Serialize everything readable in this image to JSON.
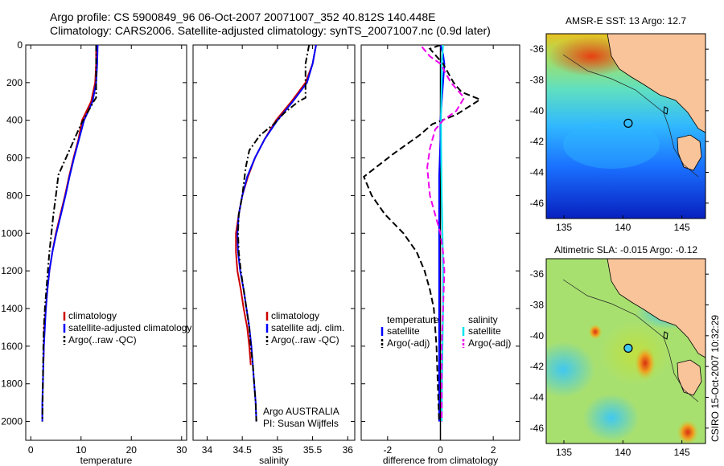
{
  "header": {
    "line1": "Argo profile: CS 5900849_96 06-Oct-2007 20071007_352 40.812S 140.448E",
    "line2": "Climatology: CARS2006. Satellite-adjusted climatology: synTS_20071007.nc (0.9d later)"
  },
  "side_label": "CSIRO 15-Oct-2007 10:32:29",
  "colors": {
    "climatology": "#cc0000",
    "satellite": "#0000ff",
    "argo": "#000000",
    "sal_satellite": "#00e5ee",
    "sal_argo": "#ee00ee",
    "land": "#f9c49a"
  },
  "chart_data": [
    {
      "type": "line",
      "id": "temperature",
      "xlabel": "temperature",
      "ylabel": "",
      "xlim": [
        -1,
        31
      ],
      "ylim": [
        2100,
        0
      ],
      "xticks": [
        0,
        10,
        20,
        30
      ],
      "yticks": [
        0,
        200,
        400,
        600,
        800,
        1000,
        1200,
        1400,
        1600,
        1800,
        2000
      ],
      "series": [
        {
          "name": "climatology",
          "color": "#cc0000",
          "dash": "solid",
          "points": [
            [
              13,
              0
            ],
            [
              13,
              100
            ],
            [
              12.8,
              200
            ],
            [
              12,
              300
            ],
            [
              10.2,
              400
            ],
            [
              9.5,
              500
            ],
            [
              8.5,
              600
            ],
            [
              7.6,
              700
            ],
            [
              6.8,
              800
            ],
            [
              5.9,
              900
            ],
            [
              5,
              1000
            ],
            [
              4.3,
              1100
            ],
            [
              3.7,
              1200
            ],
            [
              3.3,
              1300
            ],
            [
              3,
              1400
            ],
            [
              2.7,
              1500
            ],
            [
              2.6,
              1600
            ],
            [
              2.5,
              1700
            ]
          ]
        },
        {
          "name": "satellite-adjusted climatology",
          "color": "#0000ff",
          "dash": "solid",
          "points": [
            [
              13.3,
              0
            ],
            [
              13.2,
              100
            ],
            [
              13,
              200
            ],
            [
              12.3,
              300
            ],
            [
              10.6,
              400
            ],
            [
              9.6,
              500
            ],
            [
              8.6,
              600
            ],
            [
              7.7,
              700
            ],
            [
              6.9,
              800
            ],
            [
              6,
              900
            ],
            [
              5.1,
              1000
            ],
            [
              4.3,
              1100
            ],
            [
              3.7,
              1200
            ],
            [
              3.3,
              1300
            ],
            [
              3,
              1400
            ],
            [
              2.8,
              1500
            ],
            [
              2.6,
              1600
            ],
            [
              2.5,
              1700
            ],
            [
              2.4,
              1800
            ],
            [
              2.3,
              1900
            ],
            [
              2.3,
              2000
            ]
          ]
        },
        {
          "name": "Argo(..raw -QC)",
          "color": "#000000",
          "dash": "dashdot",
          "points": [
            [
              13,
              0
            ],
            [
              13,
              100
            ],
            [
              13,
              200
            ],
            [
              13,
              280
            ],
            [
              12.5,
              300
            ],
            [
              10,
              420
            ],
            [
              8,
              540
            ],
            [
              5.5,
              690
            ],
            [
              5,
              800
            ],
            [
              4.5,
              900
            ],
            [
              4.1,
              1000
            ],
            [
              3.7,
              1100
            ],
            [
              3.4,
              1200
            ],
            [
              3.1,
              1300
            ],
            [
              2.8,
              1400
            ],
            [
              2.6,
              1500
            ],
            [
              2.5,
              1600
            ],
            [
              2.4,
              1800
            ],
            [
              2.3,
              2000
            ]
          ]
        }
      ],
      "legend": [
        "climatology",
        "satellite-adjusted climatology",
        "Argo(..raw -QC)"
      ],
      "legend_position": "lower-right"
    },
    {
      "type": "line",
      "id": "salinity",
      "xlabel": "salinity",
      "ylabel": "",
      "xlim": [
        33.8,
        36.1
      ],
      "ylim": [
        2100,
        0
      ],
      "xticks": [
        34,
        34.5,
        35,
        35.5,
        36
      ],
      "series": [
        {
          "name": "climatology",
          "color": "#cc0000",
          "dash": "solid",
          "points": [
            [
              35.55,
              0
            ],
            [
              35.5,
              100
            ],
            [
              35.4,
              200
            ],
            [
              35.2,
              300
            ],
            [
              34.98,
              400
            ],
            [
              34.82,
              500
            ],
            [
              34.68,
              600
            ],
            [
              34.58,
              700
            ],
            [
              34.5,
              800
            ],
            [
              34.45,
              900
            ],
            [
              34.41,
              1000
            ],
            [
              34.41,
              1100
            ],
            [
              34.43,
              1200
            ],
            [
              34.48,
              1300
            ],
            [
              34.52,
              1400
            ],
            [
              34.57,
              1500
            ],
            [
              34.6,
              1600
            ],
            [
              34.62,
              1700
            ]
          ]
        },
        {
          "name": "satellite adj. clim.",
          "color": "#0000ff",
          "dash": "solid",
          "points": [
            [
              35.55,
              0
            ],
            [
              35.5,
              100
            ],
            [
              35.42,
              200
            ],
            [
              35.22,
              300
            ],
            [
              35,
              400
            ],
            [
              34.82,
              500
            ],
            [
              34.68,
              600
            ],
            [
              34.57,
              700
            ],
            [
              34.5,
              800
            ],
            [
              34.45,
              900
            ],
            [
              34.43,
              1000
            ],
            [
              34.44,
              1100
            ],
            [
              34.47,
              1200
            ],
            [
              34.52,
              1300
            ],
            [
              34.56,
              1400
            ],
            [
              34.6,
              1500
            ],
            [
              34.63,
              1600
            ],
            [
              34.65,
              1700
            ],
            [
              34.67,
              1800
            ],
            [
              34.69,
              1900
            ],
            [
              34.7,
              2000
            ]
          ]
        },
        {
          "name": "Argo(..raw -QC)",
          "color": "#000000",
          "dash": "dashdot",
          "points": [
            [
              35.45,
              0
            ],
            [
              35.4,
              100
            ],
            [
              35.4,
              200
            ],
            [
              35.4,
              280
            ],
            [
              35.3,
              300
            ],
            [
              35.1,
              360
            ],
            [
              34.95,
              420
            ],
            [
              34.75,
              480
            ],
            [
              34.6,
              560
            ],
            [
              34.55,
              650
            ],
            [
              34.5,
              800
            ],
            [
              34.45,
              900
            ],
            [
              34.44,
              1000
            ],
            [
              34.45,
              1100
            ],
            [
              34.48,
              1200
            ],
            [
              34.52,
              1300
            ],
            [
              34.56,
              1400
            ],
            [
              34.6,
              1500
            ],
            [
              34.62,
              1600
            ],
            [
              34.65,
              1700
            ],
            [
              34.67,
              1800
            ],
            [
              34.69,
              1900
            ],
            [
              34.7,
              2000
            ]
          ]
        }
      ],
      "legend": [
        "climatology",
        "satellite adj. clim.",
        "Argo(..raw -QC)"
      ],
      "legend_position": "lower-right",
      "annotations": [
        "Argo AUSTRALIA",
        "PI: Susan Wijffels"
      ]
    },
    {
      "type": "line",
      "id": "difference",
      "xlabel": "difference from climatology",
      "ylabel": "",
      "xlim": [
        -3,
        3
      ],
      "ylim": [
        2100,
        0
      ],
      "xticks": [
        -2,
        0,
        2
      ],
      "series": [
        {
          "name": "temperature satellite",
          "color": "#0000ff",
          "dash": "solid",
          "points": [
            [
              0,
              0
            ],
            [
              0.1,
              50
            ],
            [
              0.15,
              100
            ],
            [
              0.1,
              200
            ],
            [
              0.05,
              300
            ],
            [
              0,
              400
            ],
            [
              0,
              500
            ],
            [
              -0.05,
              700
            ],
            [
              -0.05,
              900
            ],
            [
              -0.05,
              1100
            ],
            [
              -0.05,
              1300
            ],
            [
              -0.05,
              1500
            ],
            [
              -0.05,
              2000
            ]
          ]
        },
        {
          "name": "temperature Argo(-adj)",
          "color": "#000000",
          "dash": "dashed",
          "points": [
            [
              0,
              0
            ],
            [
              -0.4,
              20
            ],
            [
              0.1,
              100
            ],
            [
              0.5,
              200
            ],
            [
              0.8,
              250
            ],
            [
              1.5,
              290
            ],
            [
              0.6,
              370
            ],
            [
              -0.3,
              420
            ],
            [
              -0.8,
              480
            ],
            [
              -1.8,
              580
            ],
            [
              -2.9,
              700
            ],
            [
              -2.6,
              800
            ],
            [
              -2.1,
              900
            ],
            [
              -1.4,
              1000
            ],
            [
              -0.9,
              1100
            ],
            [
              -0.6,
              1200
            ],
            [
              -0.4,
              1300
            ],
            [
              -0.25,
              1400
            ],
            [
              -0.2,
              1500
            ],
            [
              -0.15,
              1600
            ],
            [
              -0.1,
              1800
            ],
            [
              -0.05,
              2000
            ]
          ]
        },
        {
          "name": "salinity satellite",
          "color": "#00e5ee",
          "dash": "solid",
          "points": [
            [
              0.1,
              0
            ],
            [
              0.05,
              100
            ],
            [
              0.05,
              200
            ],
            [
              0.03,
              300
            ],
            [
              0.02,
              400
            ],
            [
              0.03,
              600
            ],
            [
              0.05,
              800
            ],
            [
              0.08,
              1000
            ],
            [
              0.1,
              1200
            ],
            [
              0.1,
              1400
            ],
            [
              0.08,
              1600
            ],
            [
              0.06,
              1800
            ],
            [
              0.05,
              2000
            ]
          ]
        },
        {
          "name": "salinity Argo(-adj)",
          "color": "#ee00ee",
          "dash": "dashed",
          "points": [
            [
              -0.7,
              10
            ],
            [
              -0.4,
              60
            ],
            [
              0,
              100
            ],
            [
              0.4,
              200
            ],
            [
              0.9,
              280
            ],
            [
              0.6,
              350
            ],
            [
              0.1,
              400
            ],
            [
              -0.2,
              450
            ],
            [
              -0.4,
              550
            ],
            [
              -0.5,
              650
            ],
            [
              -0.4,
              800
            ],
            [
              -0.2,
              900
            ],
            [
              0,
              1000
            ],
            [
              0.1,
              1100
            ],
            [
              0.15,
              1200
            ],
            [
              0.1,
              1400
            ],
            [
              0.05,
              1600
            ],
            [
              0.05,
              1800
            ],
            [
              0.05,
              2000
            ]
          ]
        }
      ],
      "legend_titles": [
        "temperature",
        "salinity"
      ],
      "legend": [
        "satellite",
        "Argo(-adj)",
        "satellite",
        "Argo(-adj)"
      ],
      "legend_position": "lower-center"
    },
    {
      "type": "heatmap",
      "id": "sst_map",
      "title": "AMSR-E SST: 13 Argo: 12.7",
      "xlim": [
        133.5,
        147
      ],
      "ylim": [
        -47,
        -35
      ],
      "xticks": [
        135,
        140,
        145
      ],
      "yticks": [
        -36,
        -38,
        -40,
        -42,
        -44,
        -46
      ],
      "float_position": [
        140.448,
        -40.812
      ]
    },
    {
      "type": "heatmap",
      "id": "sla_map",
      "title": "Altimetric SLA: -0.015 Argo: -0.12",
      "xlim": [
        133.5,
        147
      ],
      "ylim": [
        -47,
        -35
      ],
      "xticks": [
        135,
        140,
        145
      ],
      "yticks": [
        -36,
        -38,
        -40,
        -42,
        -44,
        -46
      ],
      "float_position": [
        140.448,
        -40.812
      ]
    }
  ]
}
